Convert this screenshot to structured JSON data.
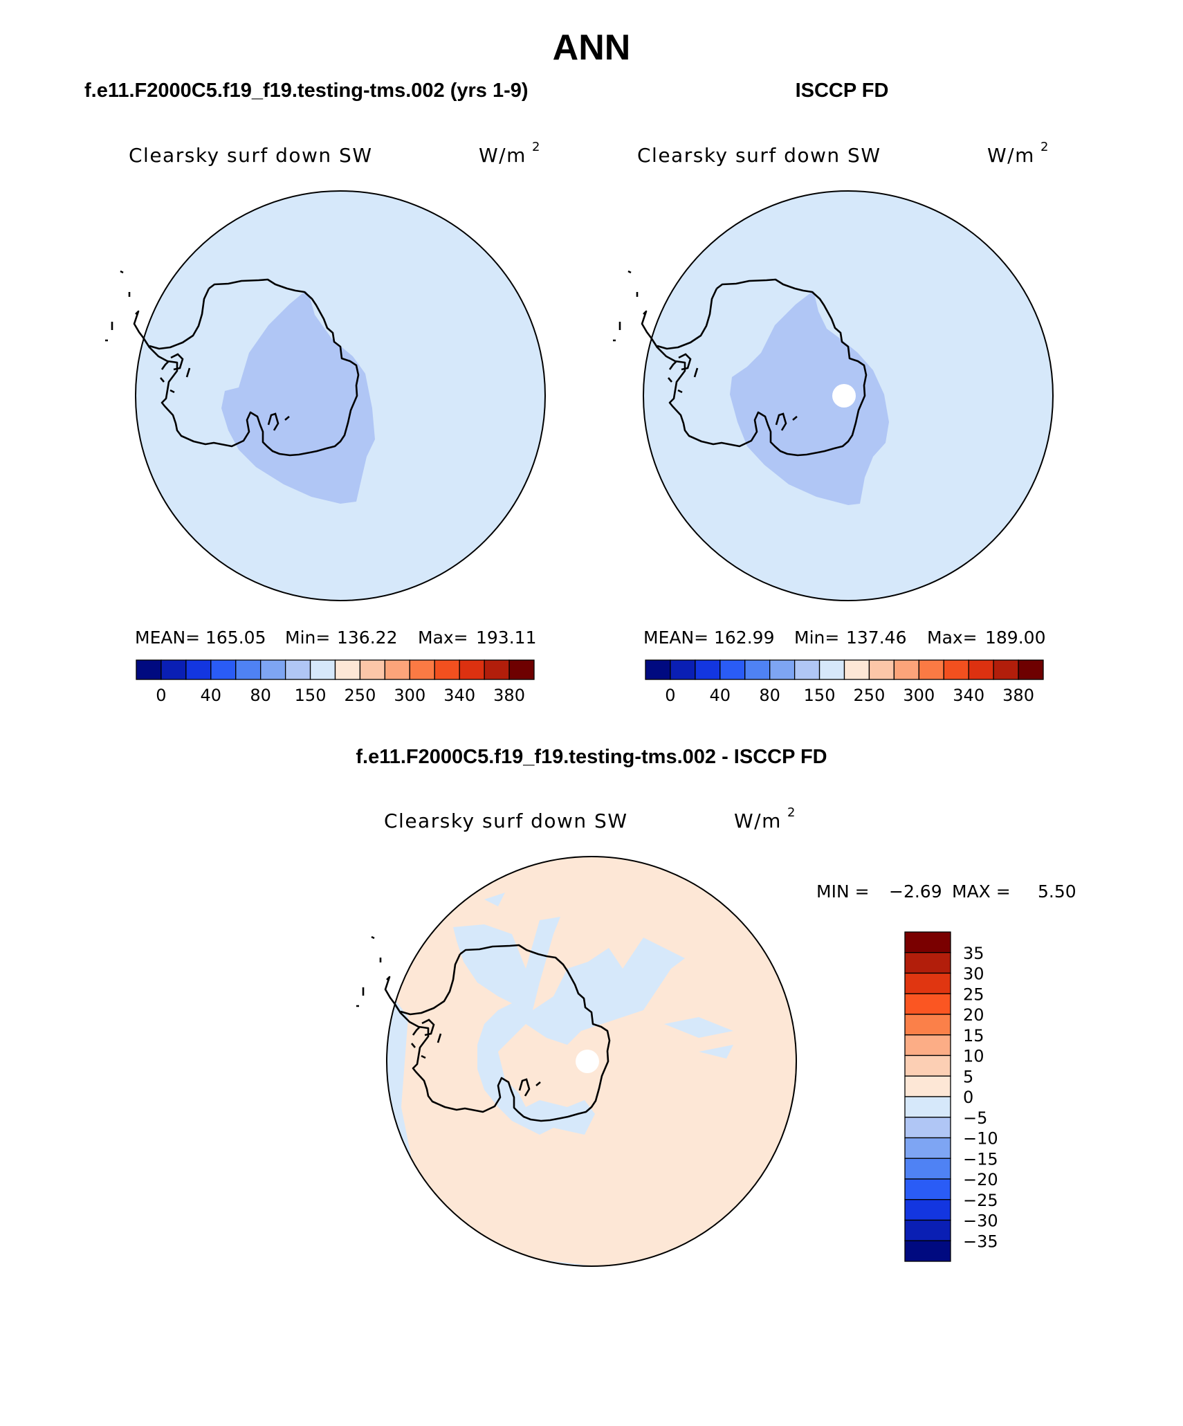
{
  "figure": {
    "season": "ANN",
    "panels": [
      {
        "id": "model",
        "heading": "f.e11.F2000C5.f19_f19.testing-tms.002 (yrs 1-9)",
        "variable": "Clearsky surf down SW",
        "units_base": "W/m",
        "units_exp": "2",
        "stats": {
          "mean_label": "MEAN=",
          "mean": "165.05",
          "min_label": "Min=",
          "min": "136.22",
          "max_label": "Max=",
          "max": "193.11"
        },
        "has_missing_pole": false
      },
      {
        "id": "obs",
        "heading": "ISCCP FD",
        "variable": "Clearsky surf down SW",
        "units_base": "W/m",
        "units_exp": "2",
        "stats": {
          "mean_label": "MEAN=",
          "mean": "162.99",
          "min_label": "Min=",
          "min": "137.46",
          "max_label": "Max=",
          "max": "189.00"
        },
        "has_missing_pole": true
      }
    ],
    "difference": {
      "heading": "f.e11.F2000C5.f19_f19.testing-tms.002 - ISCCP FD",
      "variable": "Clearsky surf down SW",
      "units_base": "W/m",
      "units_exp": "2",
      "stats": {
        "min_label": "MIN =",
        "min": "−2.69",
        "max_label": "MAX =",
        "max": "5.50"
      }
    },
    "colorbar_top": {
      "colors": [
        "#000a80",
        "#0a1fb4",
        "#1336e0",
        "#2a5cf6",
        "#4f82f4",
        "#7ea5f3",
        "#b0c6f5",
        "#d6e8fa",
        "#fde7d6",
        "#fcc6a8",
        "#fca47a",
        "#fb7a44",
        "#f2501f",
        "#dc3110",
        "#b21e0b",
        "#6e0000"
      ],
      "tick_labels": [
        "0",
        "40",
        "80",
        "150",
        "250",
        "300",
        "340",
        "380"
      ]
    },
    "colorbar_diff": {
      "colors_top_to_bottom": [
        "#7a0000",
        "#b21e0b",
        "#e03611",
        "#fb5622",
        "#fb8049",
        "#fcad86",
        "#fccfb4",
        "#fde7d6",
        "#d6e8fa",
        "#b0c6f5",
        "#7ea5f3",
        "#4f82f4",
        "#2a5cf6",
        "#1336e0",
        "#0a1fb4",
        "#000a80"
      ],
      "levels": [
        "35",
        "30",
        "25",
        "20",
        "15",
        "10",
        "5",
        "0",
        "−5",
        "−10",
        "−15",
        "−20",
        "−25",
        "−30",
        "−35"
      ]
    },
    "colors": {
      "ocean_light_blue": "#d6e8fa",
      "interior_blue": "#b0c6f5",
      "diff_background": "#fde7d6"
    }
  }
}
